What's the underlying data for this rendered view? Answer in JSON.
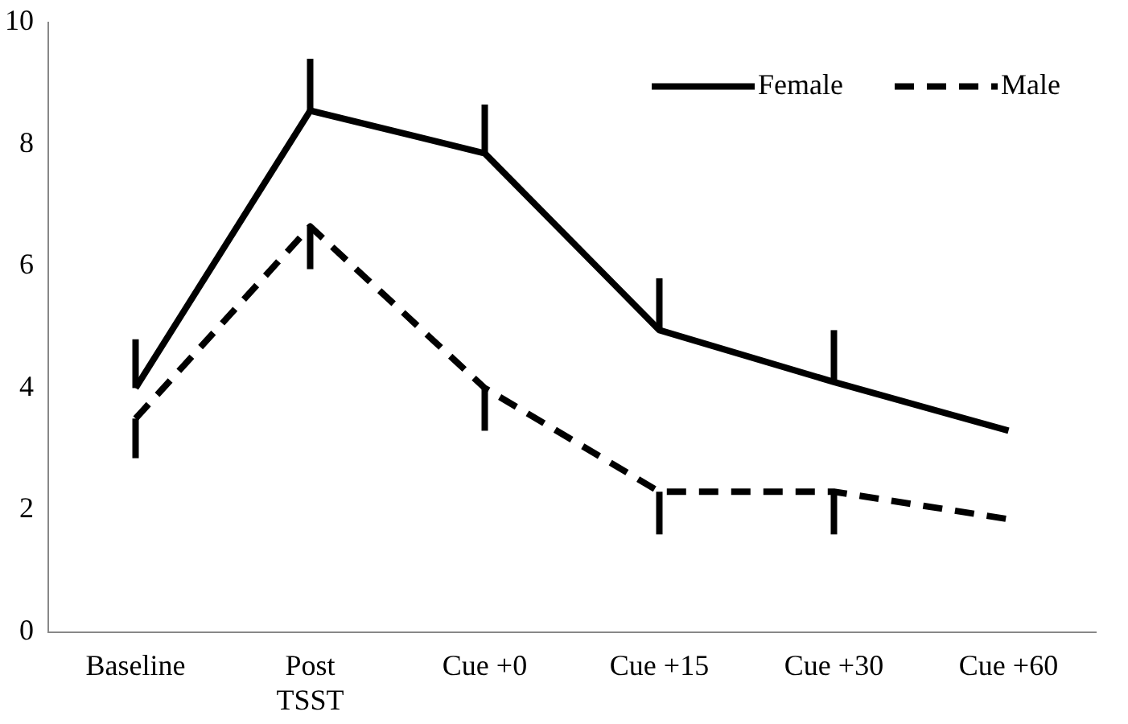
{
  "chart_data": {
    "type": "line",
    "categories": [
      "Baseline",
      "Post\nTSST",
      "Cue +0",
      "Cue +15",
      "Cue +30",
      "Cue +60"
    ],
    "series": [
      {
        "name": "Female",
        "color": "#000000",
        "line_style": "solid",
        "values": [
          4.0,
          8.55,
          7.85,
          4.95,
          4.1,
          3.3
        ],
        "errors": [
          [
            4.0,
            4.8
          ],
          [
            8.55,
            9.4
          ],
          [
            7.85,
            8.65
          ],
          [
            4.95,
            5.8
          ],
          [
            4.1,
            4.95
          ],
          null
        ]
      },
      {
        "name": "Male",
        "color": "#000000",
        "line_style": "dashed",
        "values": [
          3.5,
          6.65,
          4.0,
          2.3,
          2.3,
          1.85
        ],
        "errors": [
          [
            2.85,
            3.5
          ],
          [
            5.95,
            6.65
          ],
          [
            3.3,
            4.0
          ],
          [
            1.6,
            2.3
          ],
          [
            1.6,
            2.3
          ],
          null
        ]
      }
    ],
    "ylim": [
      0,
      10
    ],
    "yticks": [
      0,
      2,
      4,
      6,
      8,
      10
    ],
    "grid": false,
    "legend": "top right",
    "marker": "none"
  }
}
